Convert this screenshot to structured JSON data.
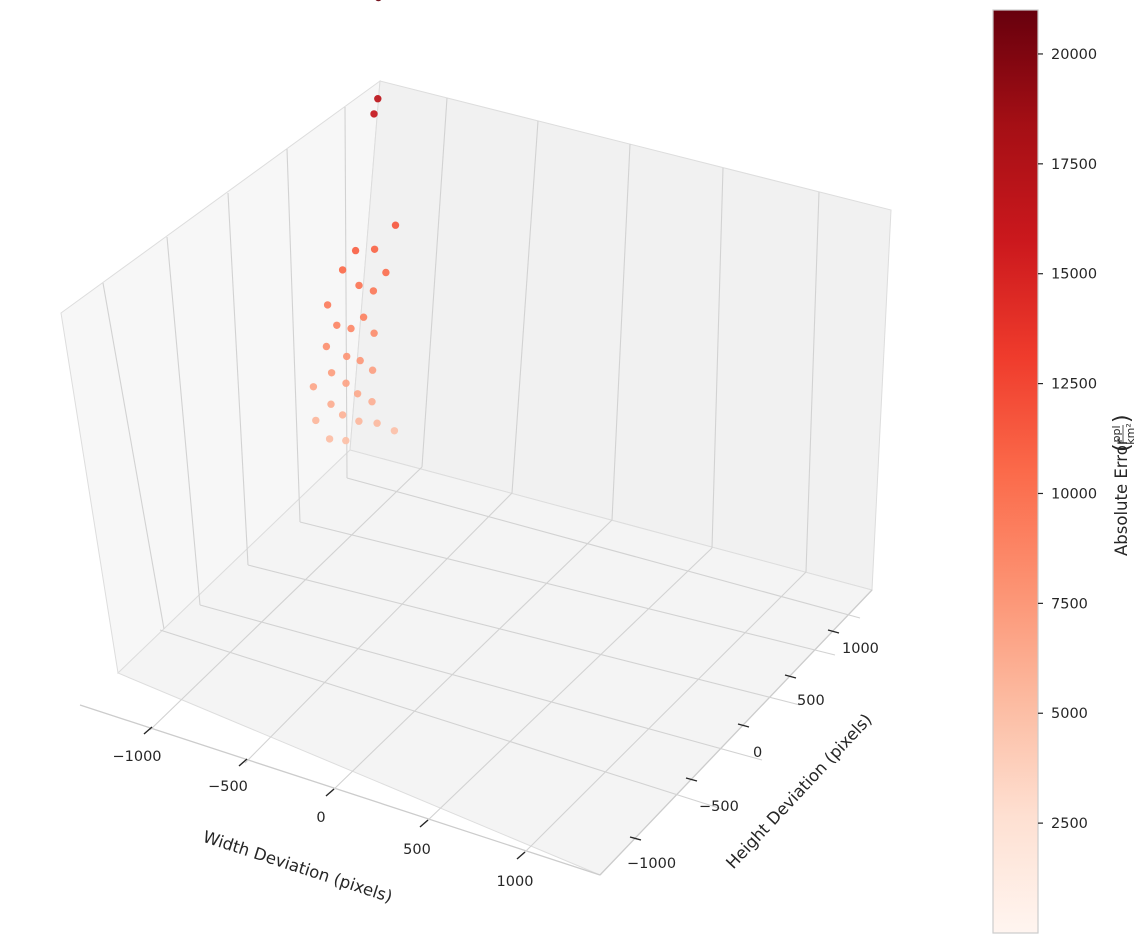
{
  "chart_data": {
    "type": "scatter",
    "projection": "3d",
    "title": "",
    "xlabel": "Width Deviation (pixels)",
    "ylabel": "Height Deviation (pixels)",
    "zlabel": "",
    "xlim": [
      -1300,
      1300
    ],
    "ylim": [
      -1300,
      1300
    ],
    "x_ticks": [
      "−1000",
      "−500",
      "0",
      "500",
      "1000"
    ],
    "y_ticks": [
      "−1000",
      "−500",
      "0",
      "500",
      "1000"
    ],
    "z_ticks_visible": false,
    "grid": true,
    "colormap": "Reds",
    "color_range": [
      0,
      21000
    ],
    "colorbar": {
      "label_text": "Absolute Error",
      "label_units_numerator": "ppl",
      "label_units_denominator": "km²",
      "ticks": [
        {
          "value": 2500,
          "label": "2500"
        },
        {
          "value": 5000,
          "label": "5000"
        },
        {
          "value": 7500,
          "label": "7500"
        },
        {
          "value": 10000,
          "label": "10000"
        },
        {
          "value": 12500,
          "label": "12500"
        },
        {
          "value": 15000,
          "label": "15000"
        },
        {
          "value": 17500,
          "label": "17500"
        },
        {
          "value": 20000,
          "label": "20000"
        }
      ]
    },
    "points": [
      {
        "x": -1000,
        "y": 950,
        "error": 20900
      },
      {
        "x": -980,
        "y": 900,
        "error": 16800
      },
      {
        "x": -990,
        "y": 880,
        "error": 16200
      },
      {
        "x": -900,
        "y": 920,
        "error": 11500
      },
      {
        "x": -1000,
        "y": 700,
        "error": 11000
      },
      {
        "x": -950,
        "y": 800,
        "error": 10800
      },
      {
        "x": -1020,
        "y": 600,
        "error": 10500
      },
      {
        "x": -870,
        "y": 750,
        "error": 10200
      },
      {
        "x": -960,
        "y": 650,
        "error": 9800
      },
      {
        "x": -910,
        "y": 700,
        "error": 9500
      },
      {
        "x": -1050,
        "y": 500,
        "error": 9300
      },
      {
        "x": -890,
        "y": 550,
        "error": 9000
      },
      {
        "x": -980,
        "y": 450,
        "error": 8800
      },
      {
        "x": -940,
        "y": 520,
        "error": 8500
      },
      {
        "x": -860,
        "y": 600,
        "error": 8200
      },
      {
        "x": -1010,
        "y": 400,
        "error": 8000
      },
      {
        "x": -920,
        "y": 430,
        "error": 7700
      },
      {
        "x": -870,
        "y": 470,
        "error": 7500
      },
      {
        "x": -960,
        "y": 350,
        "error": 7200
      },
      {
        "x": -830,
        "y": 520,
        "error": 7000
      },
      {
        "x": -900,
        "y": 380,
        "error": 6800
      },
      {
        "x": -1030,
        "y": 300,
        "error": 6600
      },
      {
        "x": -850,
        "y": 400,
        "error": 6400
      },
      {
        "x": -930,
        "y": 280,
        "error": 6200
      },
      {
        "x": -800,
        "y": 450,
        "error": 6000
      },
      {
        "x": -880,
        "y": 300,
        "error": 5800
      },
      {
        "x": -980,
        "y": 220,
        "error": 5600
      },
      {
        "x": -820,
        "y": 350,
        "error": 5500
      },
      {
        "x": -760,
        "y": 420,
        "error": 5300
      },
      {
        "x": -900,
        "y": 200,
        "error": 5100
      },
      {
        "x": -840,
        "y": 250,
        "error": 5000
      },
      {
        "x": -700,
        "y": 480,
        "error": 4900
      }
    ]
  }
}
